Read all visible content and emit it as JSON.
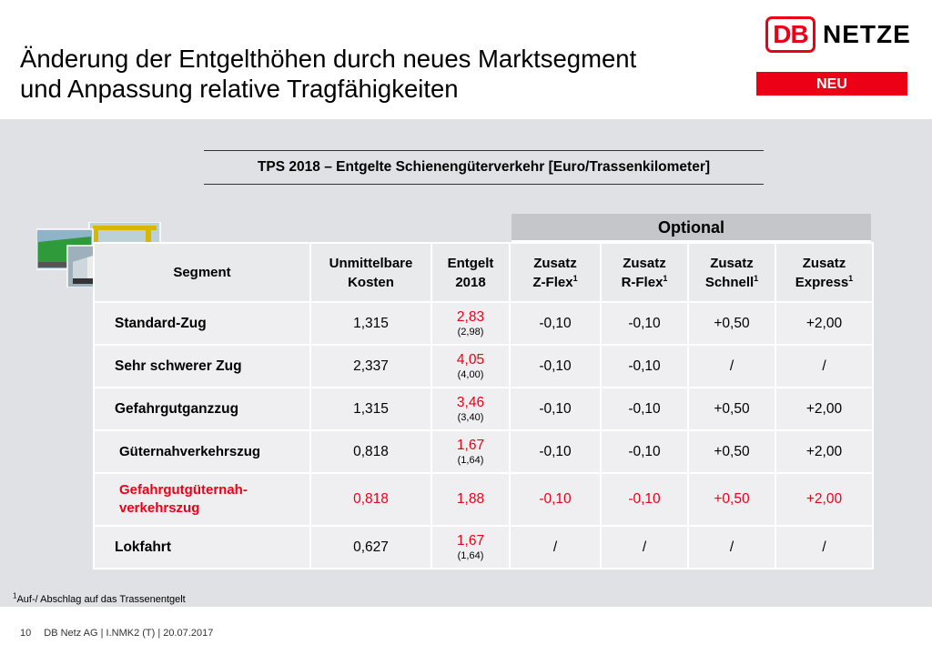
{
  "header": {
    "title_line1": "Änderung der Entgelthöhen durch neues Marktsegment",
    "title_line2": "und Anpassung relative Tragfähigkeiten",
    "logo_db": "DB",
    "logo_netze": "NETZE",
    "badge": "NEU",
    "brand_color": "#ec0016"
  },
  "table": {
    "caption": "TPS 2018 – Entgelte Schienengüterverkehr [Euro/Trassenkilometer]",
    "optional_label": "Optional",
    "headers": {
      "segment": "Segment",
      "kosten_1": "Unmittelbare",
      "kosten_2": "Kosten",
      "entgelt_1": "Entgelt",
      "entgelt_2": "2018",
      "zflex_1": "Zusatz",
      "zflex_2": "Z-Flex",
      "rflex_1": "Zusatz",
      "rflex_2": "R-Flex",
      "schnell_1": "Zusatz",
      "schnell_2": "Schnell",
      "express_1": "Zusatz",
      "express_2": "Express",
      "footnote_ref": "1"
    },
    "rows": [
      {
        "segment": "Standard-Zug",
        "kosten": "1,315",
        "entgelt": "2,83",
        "prev": "(2,98)",
        "zflex": "-0,10",
        "rflex": "-0,10",
        "schnell": "+0,50",
        "express": "+2,00"
      },
      {
        "segment": "Sehr schwerer Zug",
        "kosten": "2,337",
        "entgelt": "4,05",
        "prev": "(4,00)",
        "zflex": "-0,10",
        "rflex": "-0,10",
        "schnell": "/",
        "express": "/"
      },
      {
        "segment": "Gefahrgutganzzug",
        "kosten": "1,315",
        "entgelt": "3,46",
        "prev": "(3,40)",
        "zflex": "-0,10",
        "rflex": "-0,10",
        "schnell": "+0,50",
        "express": "+2,00"
      },
      {
        "segment": "Güternahverkehrszug",
        "kosten": "0,818",
        "entgelt": "1,67",
        "prev": "(1,64)",
        "zflex": "-0,10",
        "rflex": "-0,10",
        "schnell": "+0,50",
        "express": "+2,00"
      },
      {
        "segment_1": "Gefahrgutgüternah-",
        "segment_2": "verkehrszug",
        "kosten": "0,818",
        "entgelt": "1,88",
        "zflex": "-0,10",
        "rflex": "-0,10",
        "schnell": "+0,50",
        "express": "+2,00"
      },
      {
        "segment": "Lokfahrt",
        "kosten": "0,627",
        "entgelt": "1,67",
        "prev": "(1,64)",
        "zflex": "/",
        "rflex": "/",
        "schnell": "/",
        "express": "/"
      }
    ]
  },
  "footnote": {
    "marker": "1",
    "text": "Auf-/ Abschlag auf das Trassenentgelt"
  },
  "footer": {
    "page": "10",
    "info": "DB Netz AG | I.NMK2 (T) | 20.07.2017"
  }
}
